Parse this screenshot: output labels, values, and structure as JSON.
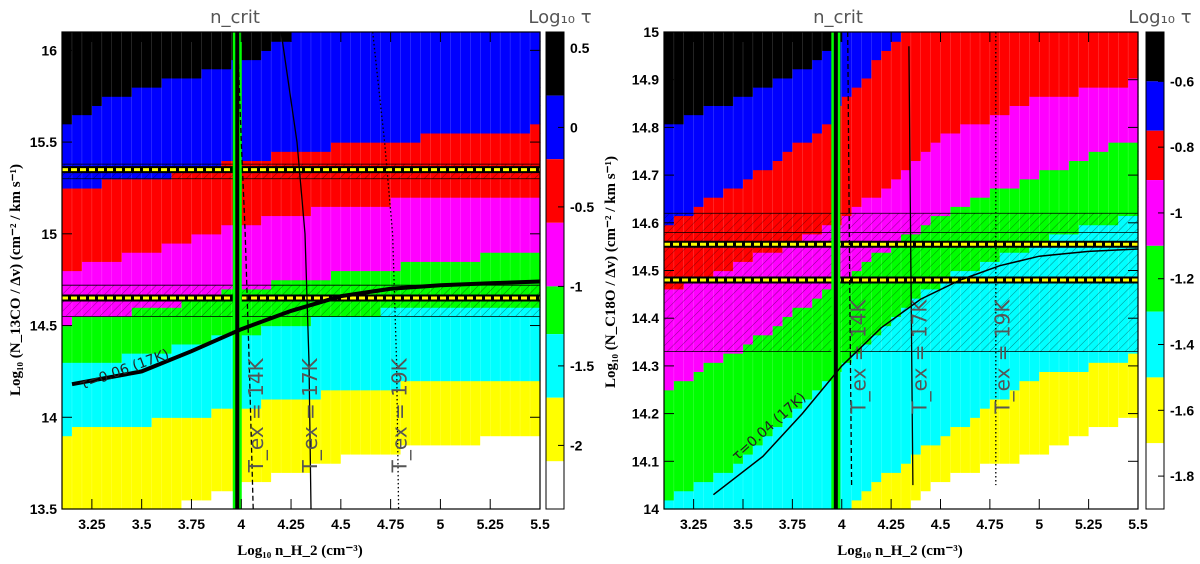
{
  "chart_data": [
    {
      "type": "heatmap",
      "panel": "left",
      "top_label": "n_crit",
      "colorbar_title": "Log₁₀ τ",
      "xlabel": "Log₁₀ n_H_2 (cm⁻³)",
      "ylabel": "Log₁₀ (N_13CO / Δv) (cm⁻² / km s⁻¹)",
      "xlim": [
        3.1,
        5.5
      ],
      "ylim": [
        13.5,
        16.1
      ],
      "x_ticks": [
        "3.25",
        "3.5",
        "3.75",
        "4",
        "4.25",
        "4.5",
        "4.75",
        "5",
        "5.25",
        "5.5"
      ],
      "y_ticks": [
        "13.5",
        "14",
        "14.5",
        "15",
        "15.5",
        "16"
      ],
      "colorbar_ticks": [
        "0.5",
        "0",
        "-0.5",
        "-1",
        "-1.5",
        "-2"
      ],
      "colorbar_range": [
        -2.4,
        0.6
      ],
      "color_levels": [
        {
          "min": 0.2,
          "color": "#000000"
        },
        {
          "min": -0.2,
          "color": "#0000ff"
        },
        {
          "min": -0.6,
          "color": "#ff0000"
        },
        {
          "min": -1.0,
          "color": "#ff00ff"
        },
        {
          "min": -1.3,
          "color": "#00ff00"
        },
        {
          "min": -1.7,
          "color": "#00ffff"
        },
        {
          "min": -2.1,
          "color": "#ffff00"
        },
        {
          "min": -99,
          "color": "#ffffff"
        }
      ],
      "boundaries": [
        {
          "level": "black/blue",
          "x": [
            3.1,
            3.3,
            3.5,
            3.7,
            3.9,
            4.1,
            4.2,
            4.3
          ],
          "y": [
            15.6,
            15.72,
            15.8,
            15.85,
            15.9,
            15.98,
            16.05,
            16.1
          ]
        },
        {
          "level": "blue/red",
          "x": [
            3.1,
            3.6,
            4.0,
            4.5,
            5.0,
            5.5
          ],
          "y": [
            15.24,
            15.32,
            15.4,
            15.48,
            15.54,
            15.58
          ]
        },
        {
          "level": "red/magenta",
          "x": [
            3.1,
            3.6,
            4.0,
            4.5,
            5.0,
            5.5
          ],
          "y": [
            14.8,
            14.93,
            15.06,
            15.15,
            15.2,
            15.22
          ]
        },
        {
          "level": "magenta/green",
          "x": [
            3.1,
            3.6,
            4.0,
            4.5,
            5.0,
            5.5
          ],
          "y": [
            14.52,
            14.6,
            14.7,
            14.78,
            14.86,
            14.9
          ]
        },
        {
          "level": "green/cyan",
          "x": [
            3.1,
            3.6,
            4.0,
            4.5,
            5.0,
            5.5
          ],
          "y": [
            14.28,
            14.36,
            14.46,
            14.56,
            14.6,
            14.62
          ]
        },
        {
          "level": "cyan/yellow",
          "x": [
            3.1,
            3.6,
            4.0,
            4.5,
            5.0,
            5.5
          ],
          "y": [
            13.92,
            13.98,
            14.06,
            14.14,
            14.2,
            14.22
          ]
        },
        {
          "level": "yellow/white",
          "x": [
            3.1,
            3.6,
            4.0,
            4.5,
            5.0,
            5.5
          ],
          "y": [
            13.5,
            13.5,
            13.62,
            13.78,
            13.86,
            13.9
          ]
        }
      ],
      "hatch_bands": [
        {
          "y": [
            15.3,
            15.38
          ],
          "lines": [
            15.3,
            15.35,
            15.38
          ]
        },
        {
          "y": [
            14.55,
            14.72
          ],
          "lines": [
            14.55,
            14.65,
            14.72
          ]
        }
      ],
      "yellow_lines": [
        15.35,
        14.65
      ],
      "ncrit_x": 3.98,
      "tex_curves": [
        {
          "label": "T_ex = 14K",
          "style": "dashed",
          "x": [
            3.98,
            4.0,
            4.02,
            4.04,
            4.06
          ],
          "y": [
            16.1,
            15.5,
            15.0,
            14.3,
            13.5
          ],
          "label_x": 4.11,
          "label_y": 13.7
        },
        {
          "label": "T_ex = 17K",
          "style": "solid",
          "x": [
            4.2,
            4.28,
            4.32,
            4.34,
            4.35
          ],
          "y": [
            16.1,
            15.5,
            15.0,
            14.3,
            13.5
          ],
          "label_x": 4.38,
          "label_y": 13.7
        },
        {
          "label": "T_ex = 19K",
          "style": "dotted",
          "x": [
            4.66,
            4.72,
            4.76,
            4.78,
            4.79
          ],
          "y": [
            16.1,
            15.5,
            15.0,
            14.3,
            13.5
          ],
          "label_x": 4.83,
          "label_y": 13.7
        }
      ],
      "tau_curve": {
        "label": "τ=0.06 (17K)",
        "x": [
          3.15,
          3.5,
          3.75,
          4.0,
          4.25,
          4.5,
          4.75,
          5.0,
          5.25,
          5.5
        ],
        "y": [
          14.18,
          14.25,
          14.36,
          14.48,
          14.58,
          14.66,
          14.7,
          14.72,
          14.73,
          14.74
        ],
        "label_x": 3.2,
        "label_y": 14.15
      }
    },
    {
      "type": "heatmap",
      "panel": "right",
      "top_label": "n_crit",
      "colorbar_title": "Log₁₀ τ",
      "xlabel": "Log₁₀ n_H_2 (cm⁻³)",
      "ylabel": "Log₁₀ (N_C18O / Δv) (cm⁻² / km s⁻¹)",
      "xlim": [
        3.1,
        5.5
      ],
      "ylim": [
        14.0,
        15.0
      ],
      "x_ticks": [
        "3.25",
        "3.5",
        "3.75",
        "4",
        "4.25",
        "4.5",
        "4.75",
        "5",
        "5.25",
        "5.5"
      ],
      "y_ticks": [
        "14",
        "14.1",
        "14.2",
        "14.3",
        "14.4",
        "14.5",
        "14.6",
        "14.7",
        "14.8",
        "14.9",
        "15"
      ],
      "colorbar_ticks": [
        "-0.6",
        "-0.8",
        "-1",
        "-1.2",
        "-1.4",
        "-1.6",
        "-1.8"
      ],
      "colorbar_range": [
        -1.9,
        -0.45
      ],
      "color_levels": [
        {
          "min": -0.6,
          "color": "#000000"
        },
        {
          "min": -0.75,
          "color": "#0000ff"
        },
        {
          "min": -0.9,
          "color": "#ff0000"
        },
        {
          "min": -1.1,
          "color": "#ff00ff"
        },
        {
          "min": -1.3,
          "color": "#00ff00"
        },
        {
          "min": -1.5,
          "color": "#00ffff"
        },
        {
          "min": -1.7,
          "color": "#ffff00"
        },
        {
          "min": -99,
          "color": "#ffffff"
        }
      ],
      "boundaries": [
        {
          "level": "black/blue",
          "x": [
            3.1,
            3.4,
            3.7,
            3.9,
            4.0
          ],
          "y": [
            14.8,
            14.85,
            14.9,
            14.95,
            15.0
          ]
        },
        {
          "level": "blue/red",
          "x": [
            3.1,
            3.5,
            3.9,
            4.1,
            4.3
          ],
          "y": [
            14.6,
            14.68,
            14.8,
            14.9,
            15.0
          ]
        },
        {
          "level": "red/magenta",
          "x": [
            3.1,
            3.5,
            4.0,
            4.5,
            5.0,
            5.5
          ],
          "y": [
            14.45,
            14.52,
            14.6,
            14.78,
            14.86,
            14.9
          ]
        },
        {
          "level": "magenta/green",
          "x": [
            3.1,
            3.5,
            4.0,
            4.5,
            5.0,
            5.5
          ],
          "y": [
            14.25,
            14.34,
            14.48,
            14.62,
            14.7,
            14.78
          ]
        },
        {
          "level": "green/cyan",
          "x": [
            3.1,
            3.5,
            4.0,
            4.5,
            5.0,
            5.5
          ],
          "y": [
            14.02,
            14.1,
            14.3,
            14.48,
            14.56,
            14.62
          ]
        },
        {
          "level": "cyan/yellow",
          "x": [
            3.1,
            3.5,
            4.0,
            4.5,
            5.0,
            5.5
          ],
          "y": [
            14.0,
            14.0,
            14.0,
            14.15,
            14.28,
            14.32
          ]
        },
        {
          "level": "yellow/white",
          "x": [
            3.1,
            4.3,
            4.5,
            5.0,
            5.5
          ],
          "y": [
            14.0,
            14.0,
            14.06,
            14.12,
            14.2
          ]
        }
      ],
      "hatch_bands": [
        {
          "y": [
            14.33,
            14.62
          ],
          "lines": [
            14.33,
            14.48,
            14.55,
            14.58,
            14.62
          ]
        }
      ],
      "yellow_lines": [
        14.555,
        14.48
      ],
      "ncrit_x": 3.97,
      "tex_curves": [
        {
          "label": "T_ex = 14K",
          "style": "dashed",
          "x": [
            4.03,
            4.04,
            4.05
          ],
          "y": [
            15.0,
            14.5,
            14.05
          ],
          "label_x": 4.12,
          "label_y": 14.2
        },
        {
          "label": "T_ex = 17K",
          "style": "solid",
          "x": [
            4.34,
            4.35,
            4.36
          ],
          "y": [
            14.97,
            14.5,
            14.05
          ],
          "label_x": 4.43,
          "label_y": 14.2
        },
        {
          "label": "T_ex = 19K",
          "style": "dotted",
          "x": [
            4.78,
            4.78,
            4.78
          ],
          "y": [
            15.0,
            14.5,
            14.05
          ],
          "label_x": 4.85,
          "label_y": 14.2
        }
      ],
      "tau_curve": {
        "label": "τ=0.04 (17K)",
        "x": [
          3.35,
          3.6,
          3.8,
          4.0,
          4.2,
          4.4,
          4.6,
          4.8,
          5.0,
          5.25,
          5.5
        ],
        "y": [
          14.03,
          14.11,
          14.2,
          14.3,
          14.38,
          14.44,
          14.48,
          14.51,
          14.53,
          14.54,
          14.545
        ],
        "label_x": 3.47,
        "label_y": 14.1
      }
    }
  ]
}
